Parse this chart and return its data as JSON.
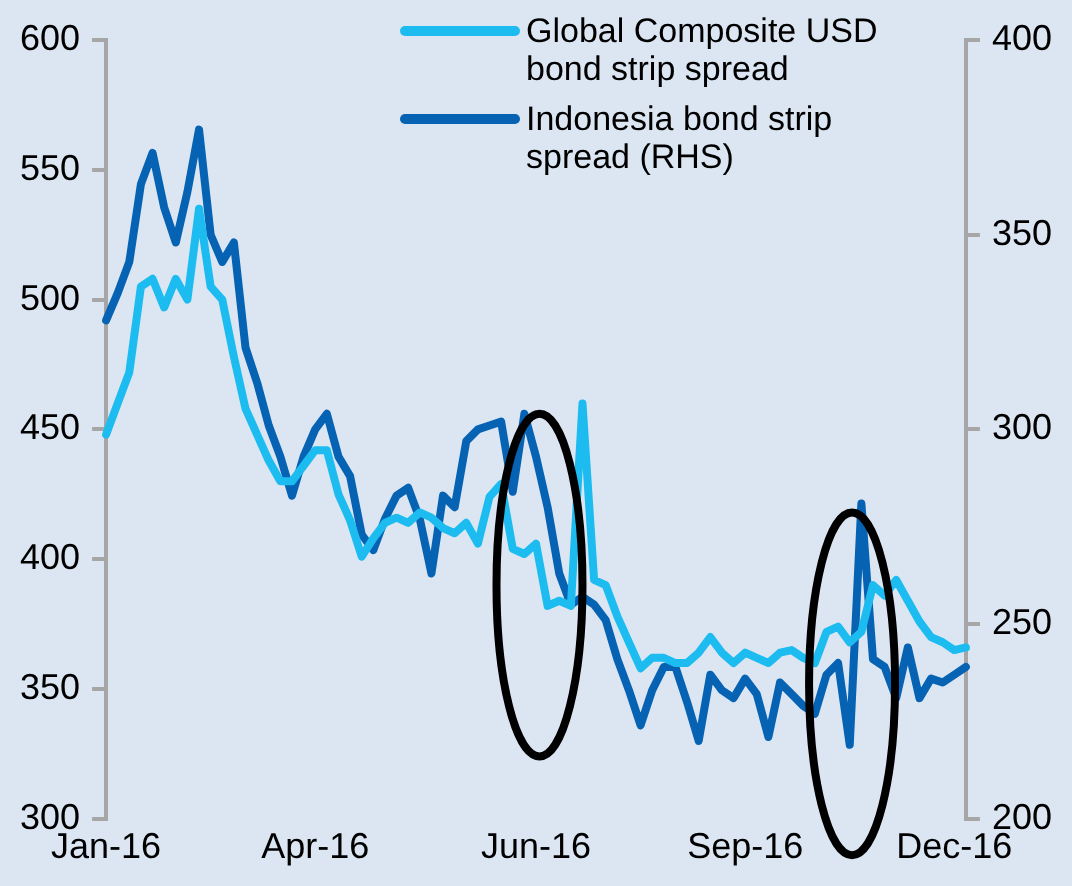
{
  "chart_data": {
    "type": "line",
    "categories": [
      "Jan-16",
      null,
      null,
      null,
      null,
      null,
      null,
      null,
      null,
      null,
      null,
      null,
      null,
      null,
      null,
      null,
      null,
      null,
      "Apr-16",
      null,
      null,
      null,
      null,
      null,
      null,
      null,
      null,
      null,
      null,
      null,
      null,
      null,
      null,
      null,
      null,
      null,
      null,
      "Jun-16",
      null,
      null,
      null,
      null,
      null,
      null,
      null,
      null,
      null,
      null,
      null,
      null,
      null,
      null,
      null,
      null,
      null,
      "Sep-16",
      null,
      null,
      null,
      null,
      null,
      null,
      null,
      null,
      null,
      null,
      null,
      null,
      null,
      null,
      null,
      null,
      null,
      "Dec-16",
      null
    ],
    "series": [
      {
        "name": "Global Composite USD bond strip spread",
        "color": "#1cbcf0",
        "values": [
          448,
          460,
          472,
          505,
          508,
          497,
          508,
          500,
          535,
          505,
          500,
          478,
          458,
          448,
          438,
          430,
          430,
          436,
          442,
          442,
          425,
          415,
          401,
          408,
          414,
          416,
          414,
          418,
          416,
          412,
          410,
          414,
          406,
          424,
          429,
          404,
          402,
          406,
          382,
          384,
          382,
          460,
          392,
          390,
          378,
          368,
          358,
          362,
          362,
          360,
          360,
          364,
          370,
          364,
          360,
          364,
          362,
          360,
          364,
          365,
          362,
          360,
          372,
          374,
          368,
          372,
          390,
          386,
          392,
          384,
          376,
          370,
          368,
          365,
          366
        ]
      },
      {
        "name": "Indonesia bond strip spread (RHS)",
        "color": "#0662b2",
        "axis": "y2",
        "values": [
          328,
          335,
          343,
          363,
          371,
          357,
          348,
          361,
          377,
          350,
          343,
          348,
          321,
          312,
          301,
          293,
          283,
          293,
          300,
          304,
          293,
          288,
          273,
          269,
          277,
          283,
          285,
          277,
          263,
          283,
          280,
          297,
          300,
          301,
          302,
          284,
          304,
          293,
          280,
          263,
          255,
          257,
          255,
          251,
          241,
          233,
          224,
          233,
          239,
          239,
          230,
          220,
          237,
          233,
          231,
          236,
          232,
          221,
          235,
          232,
          229,
          227,
          237,
          240,
          219,
          281,
          241,
          239,
          231,
          244,
          231,
          236,
          235,
          237,
          239
        ]
      }
    ],
    "ylim": [
      300,
      600
    ],
    "yticks": [
      300,
      350,
      400,
      450,
      500,
      550,
      600
    ],
    "y2lim": [
      200,
      400
    ],
    "y2ticks": [
      200,
      250,
      300,
      350,
      400
    ],
    "legend": "top right",
    "grid": false,
    "marker": "none",
    "line_style": "solid"
  }
}
